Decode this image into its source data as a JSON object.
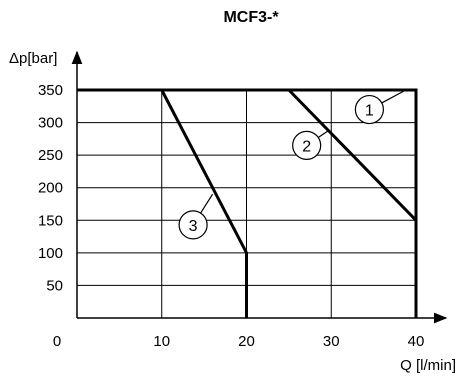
{
  "chart_data": {
    "type": "line",
    "title": "MCF3-*",
    "xlabel": "Q [l/min]",
    "ylabel": "Δp[bar]",
    "xlim": [
      0,
      40
    ],
    "ylim": [
      0,
      350
    ],
    "x_ticks": [
      0,
      10,
      20,
      30,
      40
    ],
    "x_tick_labels": [
      "0",
      "10",
      "20",
      "30",
      "40"
    ],
    "y_ticks": [
      50,
      100,
      150,
      200,
      250,
      300,
      350
    ],
    "y_tick_labels": [
      "50",
      "100",
      "150",
      "200",
      "250",
      "300",
      "350"
    ],
    "grid": true,
    "series": [
      {
        "name": "1",
        "points": [
          [
            0,
            350
          ],
          [
            40,
            350
          ],
          [
            40,
            0
          ]
        ]
      },
      {
        "name": "2",
        "points": [
          [
            25,
            350
          ],
          [
            40,
            150
          ]
        ]
      },
      {
        "name": "3",
        "points": [
          [
            10,
            350
          ],
          [
            20,
            100
          ],
          [
            20,
            0
          ]
        ]
      }
    ],
    "markers": [
      {
        "label": "1",
        "x": 34.5,
        "y": 320,
        "leader_to": [
          38.8,
          350
        ]
      },
      {
        "label": "2",
        "x": 27.1,
        "y": 265,
        "leader_to": [
          29.6,
          287
        ]
      },
      {
        "label": "3",
        "x": 13.7,
        "y": 143,
        "leader_to": [
          16.0,
          190
        ]
      }
    ]
  }
}
